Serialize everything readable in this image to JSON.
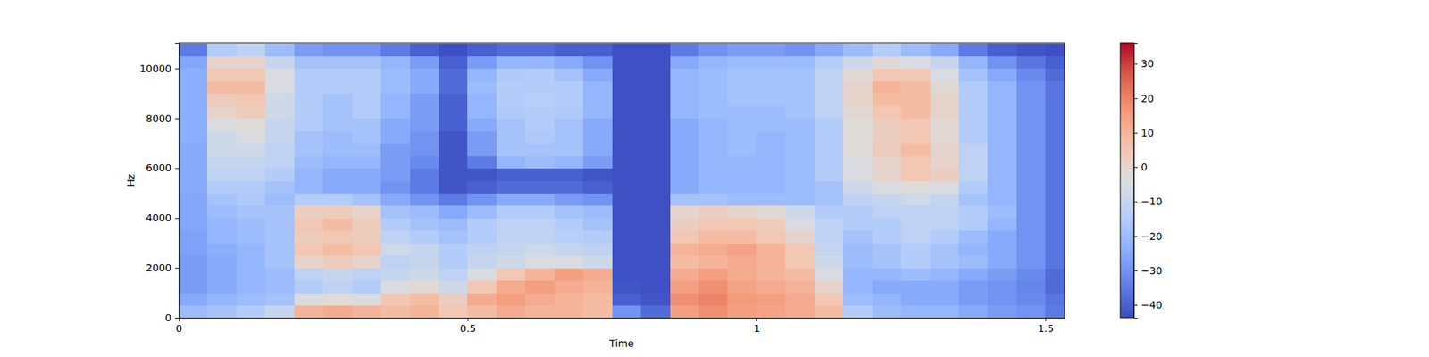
{
  "chart_data": {
    "type": "heatmap",
    "x_label": "Time",
    "y_label": "Hz",
    "xlim": [
      0,
      1.533
    ],
    "ylim": [
      0,
      11025
    ],
    "xticks": [
      0,
      0.5,
      1,
      1.5
    ],
    "yticks": [
      0,
      2000,
      4000,
      6000,
      8000,
      10000
    ],
    "x": [
      0.025,
      0.075,
      0.125,
      0.175,
      0.225,
      0.275,
      0.325,
      0.375,
      0.425,
      0.475,
      0.525,
      0.575,
      0.625,
      0.675,
      0.725,
      0.775,
      0.825,
      0.875,
      0.925,
      0.975,
      1.025,
      1.075,
      1.125,
      1.175,
      1.225,
      1.275,
      1.325,
      1.375,
      1.425,
      1.475,
      1.525
    ],
    "y": [
      250,
      750,
      1250,
      1750,
      2250,
      2750,
      3250,
      3750,
      4250,
      4750,
      5250,
      5750,
      6250,
      6750,
      7250,
      7750,
      8250,
      8750,
      9250,
      9750,
      10250,
      10750
    ],
    "cells": [
      [
        -20,
        -18,
        -15,
        -10,
        10,
        12,
        10,
        8,
        10,
        5,
        8,
        12,
        10,
        10,
        8,
        -30,
        -38,
        15,
        18,
        15,
        14,
        12,
        8,
        -15,
        -20,
        -22,
        -22,
        -25,
        -28,
        -30,
        -35
      ],
      [
        -25,
        -22,
        -20,
        -18,
        -5,
        -3,
        -5,
        5,
        8,
        2,
        12,
        15,
        12,
        10,
        8,
        -40,
        -42,
        18,
        20,
        16,
        15,
        12,
        5,
        -20,
        -22,
        -25,
        -25,
        -28,
        -30,
        -32,
        -36
      ],
      [
        -28,
        -25,
        -22,
        -20,
        -15,
        -12,
        -15,
        -5,
        -2,
        -8,
        5,
        12,
        15,
        12,
        10,
        -42,
        -43,
        15,
        18,
        14,
        12,
        10,
        0,
        -22,
        -25,
        -25,
        -25,
        -28,
        -30,
        -33,
        -38
      ],
      [
        -28,
        -25,
        -22,
        -20,
        -12,
        -10,
        -12,
        -10,
        -8,
        -12,
        -5,
        5,
        10,
        15,
        12,
        -43,
        -43,
        12,
        15,
        12,
        10,
        8,
        -5,
        -22,
        -22,
        -20,
        -22,
        -25,
        -28,
        -32,
        -38
      ],
      [
        -28,
        -25,
        -22,
        -18,
        0,
        3,
        0,
        -12,
        -10,
        -15,
        -10,
        -8,
        -5,
        -5,
        -8,
        -43,
        -43,
        8,
        10,
        12,
        10,
        5,
        -8,
        -20,
        -18,
        -15,
        -18,
        -20,
        -25,
        -30,
        -36
      ],
      [
        -27,
        -24,
        -22,
        -18,
        5,
        8,
        5,
        -8,
        -10,
        -15,
        -12,
        -10,
        -8,
        -10,
        -12,
        -43,
        -43,
        10,
        12,
        14,
        10,
        5,
        -10,
        -20,
        -18,
        -15,
        -18,
        -22,
        -25,
        -30,
        -36
      ],
      [
        -27,
        -22,
        -20,
        -18,
        3,
        5,
        3,
        -12,
        -15,
        -18,
        -15,
        -12,
        -12,
        -14,
        -15,
        -43,
        -43,
        5,
        8,
        8,
        5,
        0,
        -12,
        -18,
        -15,
        -12,
        -15,
        -20,
        -25,
        -30,
        -36
      ],
      [
        -26,
        -22,
        -20,
        -18,
        5,
        8,
        3,
        -15,
        -18,
        -20,
        -15,
        -12,
        -12,
        -15,
        -18,
        -43,
        -43,
        2,
        5,
        5,
        3,
        -5,
        -12,
        -15,
        -15,
        -12,
        -12,
        -15,
        -22,
        -30,
        -36
      ],
      [
        -26,
        -20,
        -18,
        -18,
        2,
        3,
        0,
        -18,
        -20,
        -25,
        -20,
        -15,
        -15,
        -18,
        -20,
        -43,
        -43,
        0,
        2,
        0,
        -2,
        -8,
        -15,
        -15,
        -12,
        -12,
        -12,
        -15,
        -20,
        -30,
        -36
      ],
      [
        -26,
        -18,
        -16,
        -20,
        -15,
        -15,
        -18,
        -25,
        -30,
        -35,
        -30,
        -25,
        -25,
        -28,
        -30,
        -43,
        -43,
        -18,
        -18,
        -20,
        -20,
        -20,
        -18,
        -12,
        -10,
        -8,
        -10,
        -18,
        -22,
        -30,
        -36
      ],
      [
        -25,
        -15,
        -15,
        -18,
        -22,
        -25,
        -25,
        -30,
        -35,
        -42,
        -40,
        -38,
        -38,
        -38,
        -40,
        -43,
        -43,
        -25,
        -22,
        -22,
        -22,
        -20,
        -18,
        -8,
        -5,
        -3,
        -5,
        -15,
        -22,
        -30,
        -36
      ],
      [
        -25,
        -12,
        -12,
        -15,
        -22,
        -25,
        -25,
        -28,
        -35,
        -42,
        -42,
        -40,
        -40,
        -40,
        -42,
        -43,
        -43,
        -25,
        -22,
        -22,
        -22,
        -20,
        -15,
        -5,
        0,
        5,
        2,
        -12,
        -22,
        -30,
        -36
      ],
      [
        -25,
        -10,
        -10,
        -12,
        -20,
        -22,
        -22,
        -28,
        -32,
        -42,
        -35,
        -22,
        -20,
        -22,
        -28,
        -43,
        -43,
        -25,
        -22,
        -22,
        -22,
        -20,
        -15,
        -5,
        0,
        5,
        0,
        -12,
        -22,
        -30,
        -36
      ],
      [
        -25,
        -8,
        -8,
        -12,
        -18,
        -20,
        -20,
        -28,
        -30,
        -42,
        -28,
        -18,
        -18,
        -18,
        -25,
        -43,
        -43,
        -25,
        -22,
        -20,
        -22,
        -20,
        -15,
        -3,
        3,
        8,
        0,
        -12,
        -22,
        -30,
        -36
      ],
      [
        -24,
        -8,
        -5,
        -10,
        -18,
        -20,
        -18,
        -25,
        -30,
        -42,
        -28,
        -18,
        -16,
        -18,
        -25,
        -43,
        -43,
        -25,
        -22,
        -20,
        -22,
        -20,
        -15,
        -3,
        2,
        5,
        -2,
        -15,
        -22,
        -30,
        -36
      ],
      [
        -24,
        -5,
        -3,
        -10,
        -15,
        -18,
        -18,
        -25,
        -28,
        -40,
        -25,
        -18,
        -15,
        -18,
        -25,
        -43,
        -43,
        -25,
        -22,
        -20,
        -20,
        -20,
        -15,
        -3,
        2,
        5,
        -2,
        -15,
        -22,
        -30,
        -36
      ],
      [
        -24,
        0,
        3,
        -8,
        -15,
        -18,
        -15,
        -22,
        -28,
        -40,
        -22,
        -16,
        -15,
        -16,
        -22,
        -43,
        -43,
        -22,
        -20,
        -20,
        -20,
        -18,
        -12,
        -2,
        5,
        8,
        0,
        -15,
        -22,
        -30,
        -36
      ],
      [
        -24,
        3,
        5,
        -8,
        -15,
        -18,
        -15,
        -22,
        -28,
        -40,
        -22,
        -15,
        -14,
        -15,
        -22,
        -43,
        -43,
        -22,
        -20,
        -18,
        -18,
        -18,
        -12,
        0,
        8,
        8,
        0,
        -15,
        -22,
        -30,
        -36
      ],
      [
        -24,
        8,
        8,
        -5,
        -15,
        -15,
        -15,
        -20,
        -25,
        -38,
        -20,
        -15,
        -15,
        -15,
        -22,
        -43,
        -43,
        -22,
        -20,
        -18,
        -18,
        -18,
        -12,
        0,
        10,
        8,
        -2,
        -15,
        -22,
        -30,
        -36
      ],
      [
        -24,
        5,
        5,
        -5,
        -15,
        -15,
        -15,
        -20,
        -25,
        -38,
        -22,
        -16,
        -15,
        -18,
        -25,
        -43,
        -43,
        -22,
        -20,
        -18,
        -18,
        -18,
        -12,
        -2,
        5,
        5,
        -5,
        -18,
        -25,
        -32,
        -38
      ],
      [
        -26,
        0,
        0,
        -10,
        -18,
        -18,
        -18,
        -22,
        -28,
        -40,
        -28,
        -22,
        -22,
        -25,
        -30,
        -43,
        -43,
        -25,
        -22,
        -20,
        -20,
        -20,
        -15,
        -8,
        -2,
        -5,
        -10,
        -22,
        -30,
        -36,
        -40
      ],
      [
        -35,
        -15,
        -12,
        -20,
        -28,
        -30,
        -30,
        -35,
        -40,
        -43,
        -40,
        -38,
        -38,
        -40,
        -40,
        -43,
        -43,
        -35,
        -30,
        -28,
        -28,
        -30,
        -25,
        -20,
        -15,
        -20,
        -25,
        -35,
        -40,
        -42,
        -43
      ]
    ],
    "colorbar_range": [
      -43.7,
      36.1
    ],
    "colorbar_ticks": [
      {
        "value": -40,
        "label": "−40"
      },
      {
        "value": -30,
        "label": "−30"
      },
      {
        "value": -20,
        "label": "−20"
      },
      {
        "value": -10,
        "label": "−10"
      },
      0,
      10,
      20,
      30
    ]
  }
}
